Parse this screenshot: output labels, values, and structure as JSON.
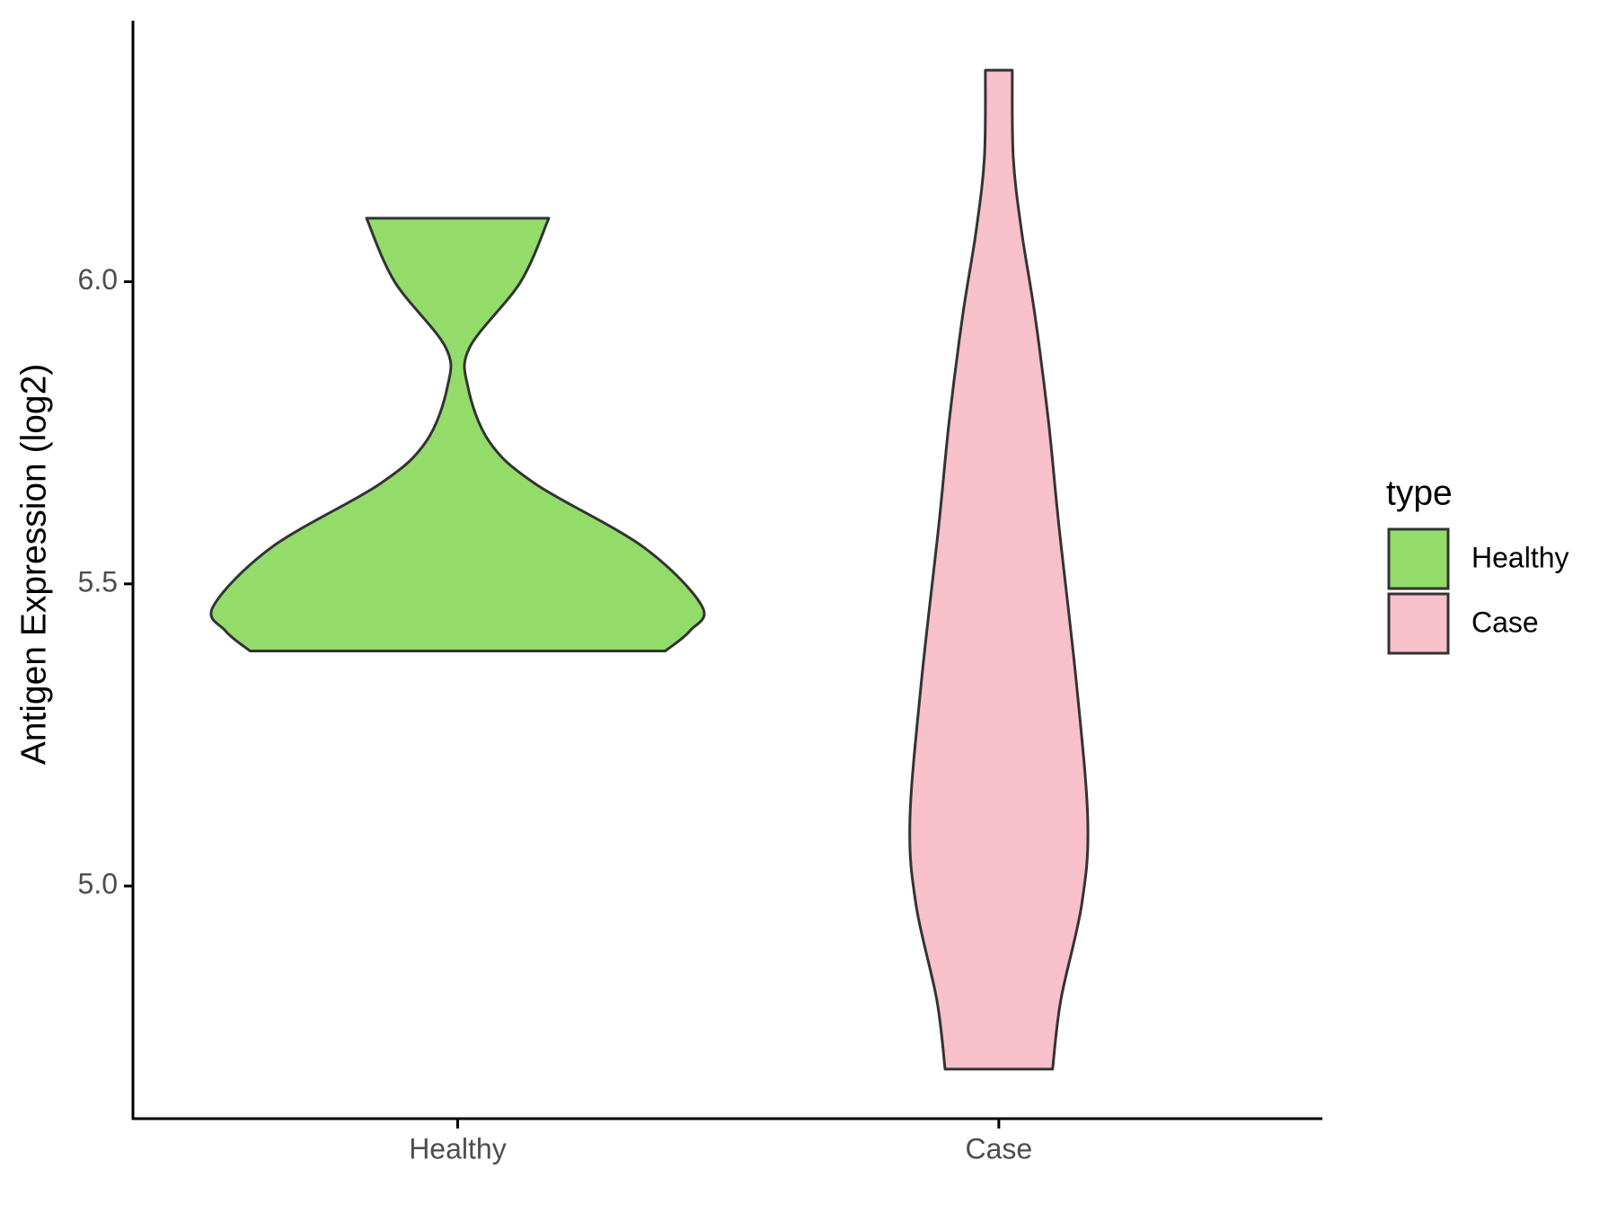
{
  "chart_data": {
    "type": "violin",
    "y_label": "Antigen Expression (log2)",
    "categories": [
      "Healthy",
      "Case"
    ],
    "legend_title": "type",
    "legend_position": "right",
    "ylim": [
      4.615,
      6.432
    ],
    "yticks": [
      {
        "value": 5.0,
        "label": "5.0"
      },
      {
        "value": 5.5,
        "label": "5.5"
      },
      {
        "value": 6.0,
        "label": "6.0"
      }
    ],
    "series": [
      {
        "name": "Healthy",
        "color": "#93dc6a",
        "y": [
          6.105,
          6.0,
          5.892,
          5.826,
          5.735,
          5.665,
          5.561,
          5.463,
          5.422,
          5.389
        ],
        "density": [
          0.373,
          0.258,
          0.05,
          0.042,
          0.13,
          0.32,
          0.76,
          1.0,
          0.95,
          0.85
        ]
      },
      {
        "name": "Case",
        "color": "#f7c0cb",
        "y": [
          6.35,
          6.206,
          6.084,
          5.944,
          5.77,
          5.596,
          5.334,
          5.108,
          4.969,
          4.812,
          4.697
        ],
        "density": [
          0.055,
          0.059,
          0.093,
          0.148,
          0.203,
          0.246,
          0.318,
          0.364,
          0.339,
          0.254,
          0.22
        ]
      }
    ]
  }
}
